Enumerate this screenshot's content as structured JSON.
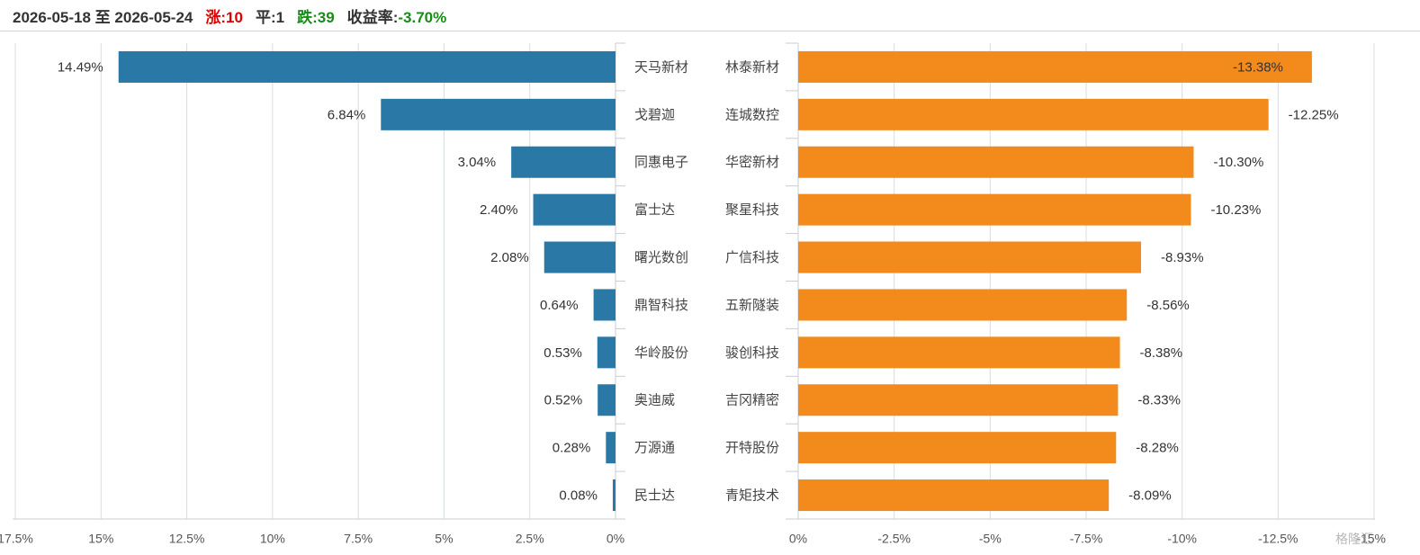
{
  "header": {
    "date_range": "2026-05-18 至 2026-05-24",
    "up_label": "涨:",
    "up_count": "10",
    "flat_label": "平:",
    "flat_count": "1",
    "down_label": "跌:",
    "down_count": "39",
    "return_label": "收益率:",
    "return_value": "-3.70%"
  },
  "watermark": "格隆汇",
  "colors": {
    "gain_bar": "#2a78a6",
    "loss_bar": "#f28a1c",
    "up_text": "#e00000",
    "down_text": "#1a8a1a",
    "axis": "#d8dde3"
  },
  "chart_data": [
    {
      "type": "bar",
      "orientation": "horizontal",
      "direction": "reversed",
      "categories": [
        "天马新材",
        "戈碧迦",
        "同惠电子",
        "富士达",
        "曙光数创",
        "鼎智科技",
        "华岭股份",
        "奥迪威",
        "万源通",
        "民士达"
      ],
      "values": [
        14.49,
        6.84,
        3.04,
        2.4,
        2.08,
        0.64,
        0.53,
        0.52,
        0.28,
        0.08
      ],
      "data_labels": [
        "14.49%",
        "6.84%",
        "3.04%",
        "2.40%",
        "2.08%",
        "0.64%",
        "0.53%",
        "0.52%",
        "0.28%",
        "0.08%"
      ],
      "xlim": [
        0,
        17.5
      ],
      "x_ticks": [
        "17.5%",
        "15%",
        "12.5%",
        "10%",
        "7.5%",
        "5%",
        "2.5%",
        "0%"
      ],
      "x_tick_values": [
        17.5,
        15,
        12.5,
        10,
        7.5,
        5,
        2.5,
        0
      ],
      "grid": true
    },
    {
      "type": "bar",
      "orientation": "horizontal",
      "direction": "normal",
      "categories": [
        "林泰新材",
        "连城数控",
        "华密新材",
        "聚星科技",
        "广信科技",
        "五新隧装",
        "骏创科技",
        "吉冈精密",
        "开特股份",
        "青矩技术"
      ],
      "values": [
        -13.38,
        -12.25,
        -10.3,
        -10.23,
        -8.93,
        -8.56,
        -8.38,
        -8.33,
        -8.28,
        -8.09
      ],
      "data_labels": [
        "-13.38%",
        "-12.25%",
        "-10.30%",
        "-10.23%",
        "-8.93%",
        "-8.56%",
        "-8.38%",
        "-8.33%",
        "-8.28%",
        "-8.09%"
      ],
      "xlim": [
        0,
        -15
      ],
      "x_ticks": [
        "0%",
        "-2.5%",
        "-5%",
        "-7.5%",
        "-10%",
        "-12.5%",
        "-15%"
      ],
      "x_tick_values": [
        0,
        -2.5,
        -5,
        -7.5,
        -10,
        -12.5,
        -15
      ],
      "grid": true
    }
  ]
}
